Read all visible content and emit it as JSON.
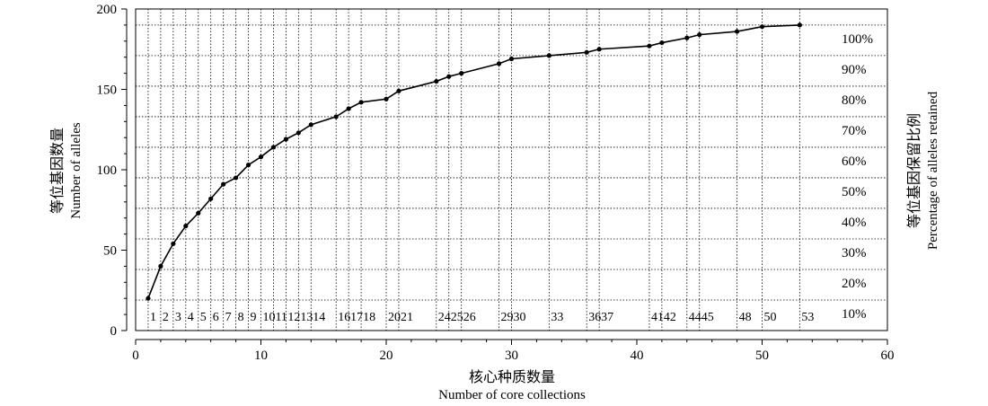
{
  "chart_data": {
    "type": "line",
    "xlabel_cn": "核心种质数量",
    "xlabel_en": "Number of core collections",
    "ylabel_cn": "等位基因数量",
    "ylabel_en": "Number of alleles",
    "y2label_cn": "等位基因保留比例",
    "y2label_en": "Percentage of alleles retained",
    "xlim": [
      0,
      60
    ],
    "ylim": [
      0,
      200
    ],
    "xticks": [
      "0",
      "10",
      "20",
      "30",
      "40",
      "50",
      "60"
    ],
    "yticks": [
      "0",
      "50",
      "100",
      "150",
      "200"
    ],
    "grid": "dotted, vertical lines at each data point, horizontal lines at every 10% of retained alleles",
    "series": [
      {
        "x": [
          1,
          2,
          3,
          4,
          5,
          6,
          7,
          8,
          9,
          10,
          11,
          12,
          13,
          14,
          16,
          17,
          18,
          20,
          21,
          24,
          25,
          26,
          29,
          30,
          33,
          36,
          37,
          41,
          42,
          44,
          45,
          48,
          50,
          53
        ],
        "y": [
          20,
          40,
          54,
          65,
          73,
          82,
          91,
          95,
          103,
          108,
          114,
          119,
          123,
          128,
          133,
          138,
          142,
          144,
          149,
          155,
          158,
          160,
          166,
          169,
          171,
          173,
          175,
          177,
          179,
          182,
          184,
          186,
          189,
          190
        ]
      }
    ],
    "x_point_labels": [
      "1",
      "2",
      "3",
      "4",
      "5",
      "6",
      "7",
      "8",
      "9",
      "10",
      "11",
      "12",
      "13",
      "14",
      "16",
      "17",
      "18",
      "20",
      "21",
      "24",
      "25",
      "26",
      "29",
      "30",
      "33",
      "36",
      "37",
      "41",
      "42",
      "44",
      "45",
      "48",
      "50",
      "53"
    ],
    "percent_levels": [
      10,
      20,
      30,
      40,
      50,
      60,
      70,
      80,
      90,
      100
    ],
    "percent_labels": [
      "10%",
      "20%",
      "30%",
      "40%",
      "50%",
      "60%",
      "70%",
      "80%",
      "90%",
      "100%"
    ],
    "percent_base": 190
  }
}
